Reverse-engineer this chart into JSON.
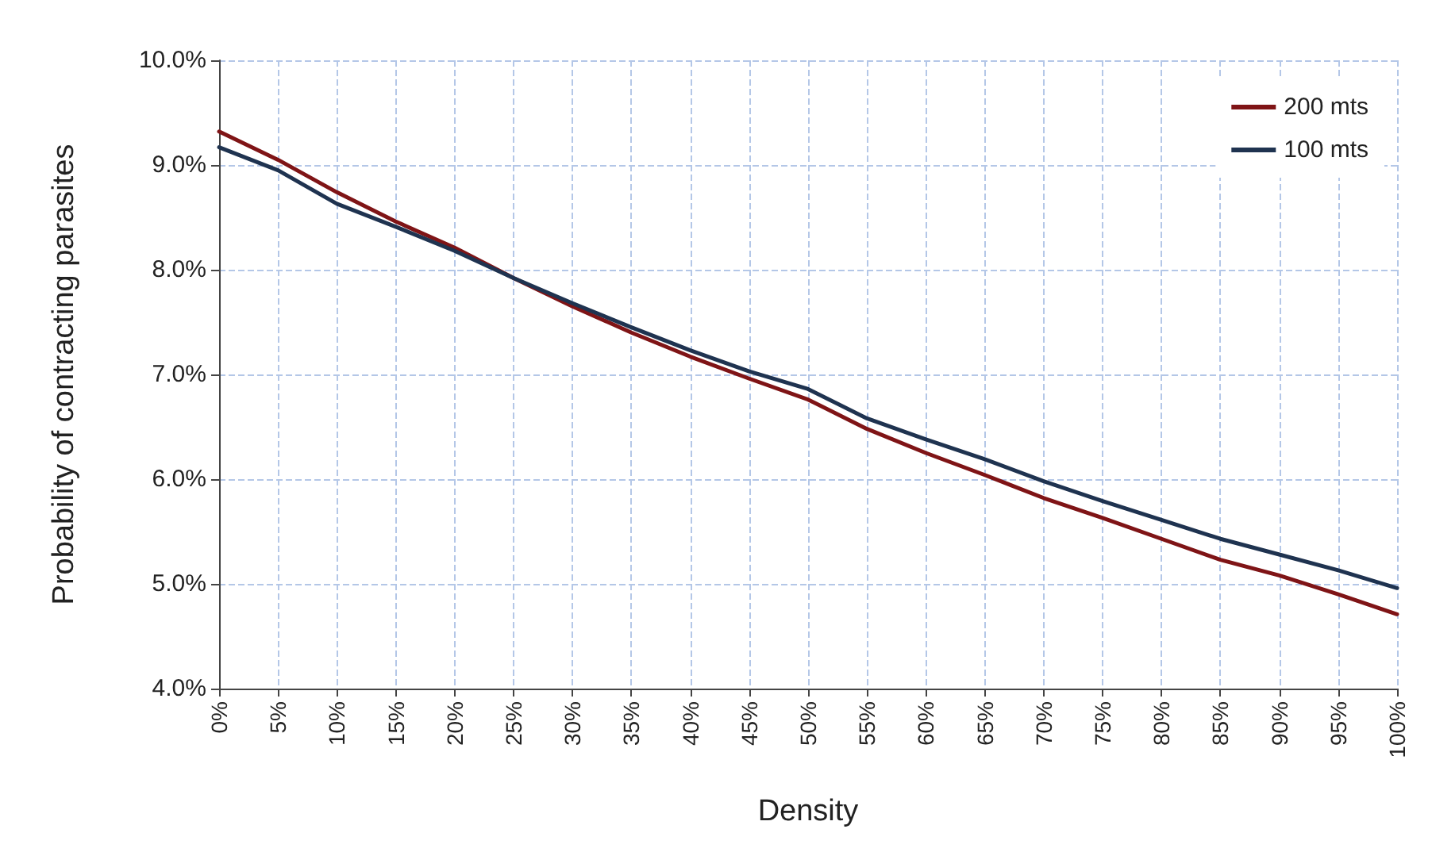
{
  "chart_data": {
    "type": "line",
    "xlabel": "Density",
    "ylabel": "Probability of contracting parasites",
    "x": [
      0,
      5,
      10,
      15,
      20,
      25,
      30,
      35,
      40,
      45,
      50,
      55,
      60,
      65,
      70,
      75,
      80,
      85,
      90,
      95,
      100
    ],
    "series": [
      {
        "name": "200 mts",
        "color": "#7f1416",
        "values": [
          9.32,
          9.05,
          8.74,
          8.46,
          8.21,
          7.92,
          7.65,
          7.4,
          7.17,
          6.96,
          6.76,
          6.48,
          6.25,
          6.04,
          5.82,
          5.63,
          5.43,
          5.23,
          5.08,
          4.9,
          4.71
        ]
      },
      {
        "name": "100 mts",
        "color": "#1f3350",
        "values": [
          9.17,
          8.95,
          8.63,
          8.41,
          8.18,
          7.92,
          7.68,
          7.45,
          7.23,
          7.03,
          6.86,
          6.58,
          6.38,
          6.19,
          5.98,
          5.79,
          5.61,
          5.43,
          5.28,
          5.13,
          4.96
        ]
      }
    ],
    "xlim": [
      0,
      100
    ],
    "xticks": [
      {
        "value": 0,
        "label": "0%"
      },
      {
        "value": 5,
        "label": "5%"
      },
      {
        "value": 10,
        "label": "10%"
      },
      {
        "value": 15,
        "label": "15%"
      },
      {
        "value": 20,
        "label": "20%"
      },
      {
        "value": 25,
        "label": "25%"
      },
      {
        "value": 30,
        "label": "30%"
      },
      {
        "value": 35,
        "label": "35%"
      },
      {
        "value": 40,
        "label": "40%"
      },
      {
        "value": 45,
        "label": "45%"
      },
      {
        "value": 50,
        "label": "50%"
      },
      {
        "value": 55,
        "label": "55%"
      },
      {
        "value": 60,
        "label": "60%"
      },
      {
        "value": 65,
        "label": "65%"
      },
      {
        "value": 70,
        "label": "70%"
      },
      {
        "value": 75,
        "label": "75%"
      },
      {
        "value": 80,
        "label": "80%"
      },
      {
        "value": 85,
        "label": "85%"
      },
      {
        "value": 90,
        "label": "90%"
      },
      {
        "value": 95,
        "label": "95%"
      },
      {
        "value": 100,
        "label": "100%"
      }
    ],
    "ylim": [
      4,
      10
    ],
    "yticks": [
      {
        "value": 4,
        "label": "4.0%"
      },
      {
        "value": 5,
        "label": "5.0%"
      },
      {
        "value": 6,
        "label": "6.0%"
      },
      {
        "value": 7,
        "label": "7.0%"
      },
      {
        "value": 8,
        "label": "8.0%"
      },
      {
        "value": 9,
        "label": "9.0%"
      },
      {
        "value": 10,
        "label": "10.0%"
      }
    ],
    "grid": true,
    "legend": "top right",
    "marker": "none",
    "line_style": "solid"
  }
}
